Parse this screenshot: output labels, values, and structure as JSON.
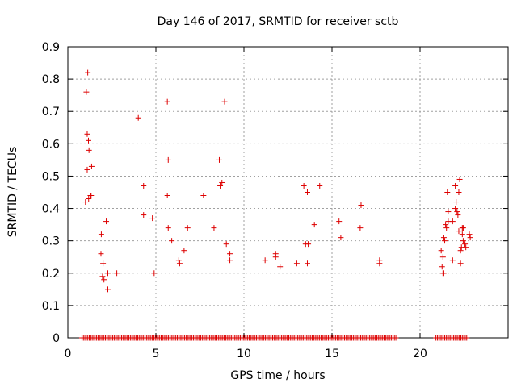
{
  "chart_data": {
    "type": "scatter",
    "title": "Day 146 of 2017, SRMTID for receiver sctb",
    "xlabel": "GPS time / hours",
    "ylabel": "SRMTID / TECUs",
    "xlim": [
      0,
      25
    ],
    "ylim": [
      0,
      0.9
    ],
    "xticks": [
      0,
      5,
      10,
      15,
      20
    ],
    "yticks": [
      0,
      0.1,
      0.2,
      0.3,
      0.4,
      0.5,
      0.6,
      0.7,
      0.8,
      0.9
    ],
    "grid": true,
    "marker": "+",
    "color": "#dd0000",
    "series": [
      {
        "name": "SRMTID",
        "points": [
          [
            1.05,
            0.76
          ],
          [
            1.13,
            0.82
          ],
          [
            1.1,
            0.63
          ],
          [
            1.17,
            0.61
          ],
          [
            1.2,
            0.58
          ],
          [
            1.1,
            0.52
          ],
          [
            1.35,
            0.53
          ],
          [
            1.0,
            0.42
          ],
          [
            1.18,
            0.43
          ],
          [
            1.28,
            0.44
          ],
          [
            1.32,
            0.44
          ],
          [
            1.9,
            0.32
          ],
          [
            1.88,
            0.26
          ],
          [
            2.0,
            0.23
          ],
          [
            1.97,
            0.19
          ],
          [
            2.05,
            0.18
          ],
          [
            2.18,
            0.36
          ],
          [
            2.27,
            0.2
          ],
          [
            2.27,
            0.15
          ],
          [
            2.78,
            0.2
          ],
          [
            4.0,
            0.68
          ],
          [
            4.3,
            0.47
          ],
          [
            4.3,
            0.38
          ],
          [
            4.8,
            0.37
          ],
          [
            4.9,
            0.2
          ],
          [
            5.65,
            0.73
          ],
          [
            5.7,
            0.55
          ],
          [
            5.65,
            0.44
          ],
          [
            5.7,
            0.34
          ],
          [
            5.9,
            0.3
          ],
          [
            6.3,
            0.24
          ],
          [
            6.35,
            0.23
          ],
          [
            6.6,
            0.27
          ],
          [
            6.8,
            0.34
          ],
          [
            7.7,
            0.44
          ],
          [
            8.3,
            0.34
          ],
          [
            8.6,
            0.55
          ],
          [
            8.65,
            0.47
          ],
          [
            8.75,
            0.48
          ],
          [
            8.9,
            0.73
          ],
          [
            9.0,
            0.29
          ],
          [
            9.2,
            0.26
          ],
          [
            9.2,
            0.24
          ],
          [
            11.2,
            0.24
          ],
          [
            11.8,
            0.26
          ],
          [
            11.8,
            0.25
          ],
          [
            12.05,
            0.22
          ],
          [
            13.0,
            0.23
          ],
          [
            13.4,
            0.47
          ],
          [
            13.5,
            0.29
          ],
          [
            13.6,
            0.45
          ],
          [
            13.65,
            0.29
          ],
          [
            13.6,
            0.23
          ],
          [
            14.0,
            0.35
          ],
          [
            14.3,
            0.47
          ],
          [
            15.4,
            0.36
          ],
          [
            15.5,
            0.31
          ],
          [
            16.6,
            0.34
          ],
          [
            16.65,
            0.41
          ],
          [
            17.7,
            0.24
          ],
          [
            17.7,
            0.23
          ],
          [
            21.2,
            0.27
          ],
          [
            21.25,
            0.22
          ],
          [
            21.3,
            0.2
          ],
          [
            21.35,
            0.2
          ],
          [
            21.3,
            0.25
          ],
          [
            21.35,
            0.31
          ],
          [
            21.4,
            0.3
          ],
          [
            21.45,
            0.35
          ],
          [
            21.5,
            0.34
          ],
          [
            21.55,
            0.45
          ],
          [
            21.6,
            0.36
          ],
          [
            21.6,
            0.39
          ],
          [
            21.85,
            0.36
          ],
          [
            21.85,
            0.24
          ],
          [
            22.0,
            0.4
          ],
          [
            22.0,
            0.47
          ],
          [
            22.05,
            0.42
          ],
          [
            22.1,
            0.39
          ],
          [
            22.15,
            0.38
          ],
          [
            22.2,
            0.45
          ],
          [
            22.2,
            0.33
          ],
          [
            22.25,
            0.49
          ],
          [
            22.3,
            0.27
          ],
          [
            22.3,
            0.23
          ],
          [
            22.35,
            0.28
          ],
          [
            22.4,
            0.34
          ],
          [
            22.4,
            0.32
          ],
          [
            22.45,
            0.34
          ],
          [
            22.45,
            0.3
          ],
          [
            22.6,
            0.28
          ],
          [
            22.55,
            0.29
          ],
          [
            22.8,
            0.32
          ],
          [
            22.85,
            0.31
          ]
        ]
      },
      {
        "name": "zero",
        "dense_ranges_at_zero": [
          [
            0.8,
            18.7
          ],
          [
            20.9,
            22.7
          ]
        ],
        "value": 0
      }
    ]
  }
}
